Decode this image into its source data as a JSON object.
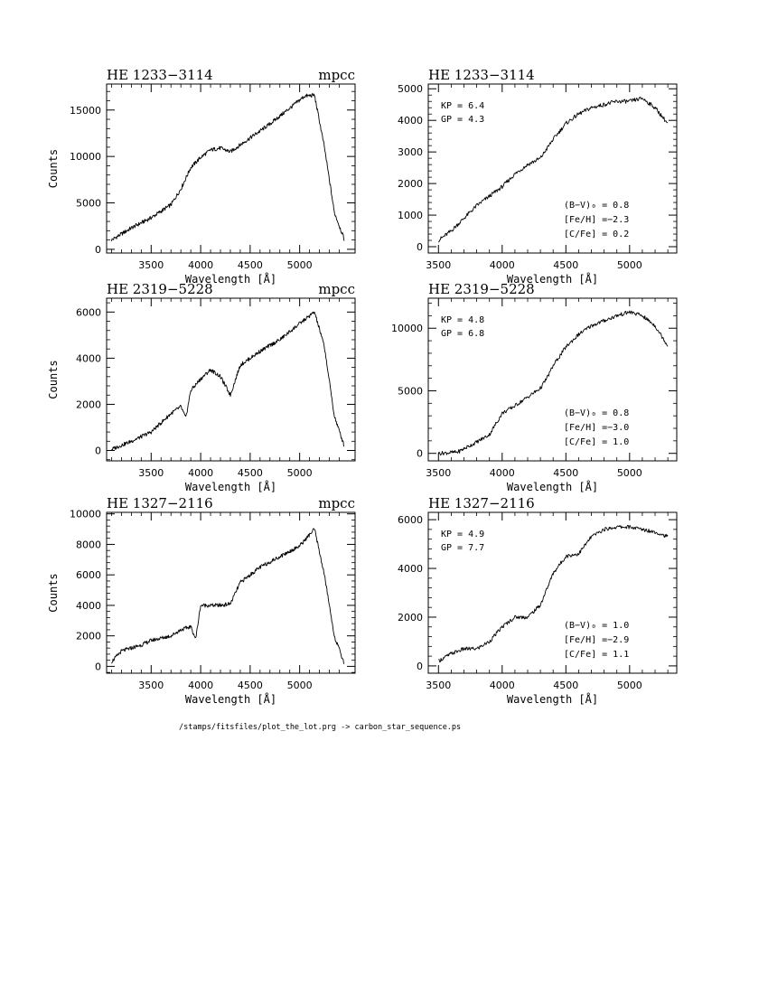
{
  "footer": "/stamps/fitsfiles/plot_the_lot.prg -> carbon_star_sequence.ps",
  "chart_data": [
    {
      "type": "line",
      "panel": "row1-left",
      "title": "HE 1233−3114",
      "title_right": "mpcc",
      "xlabel": "Wavelength [Å]",
      "ylabel": "Counts",
      "xlim": [
        3050,
        5560
      ],
      "ylim": [
        -400,
        17800
      ],
      "xticks": [
        3500,
        4000,
        4500,
        5000
      ],
      "yticks": [
        0,
        5000,
        10000,
        15000
      ],
      "grid": false,
      "points": [
        [
          3100,
          1000
        ],
        [
          3300,
          2300
        ],
        [
          3500,
          3400
        ],
        [
          3700,
          4800
        ],
        [
          3800,
          6500
        ],
        [
          3900,
          8800
        ],
        [
          4000,
          9900
        ],
        [
          4100,
          10700
        ],
        [
          4200,
          10900
        ],
        [
          4300,
          10500
        ],
        [
          4500,
          12000
        ],
        [
          4700,
          13500
        ],
        [
          4900,
          15200
        ],
        [
          5050,
          16500
        ],
        [
          5150,
          16600
        ],
        [
          5250,
          11000
        ],
        [
          5350,
          4000
        ],
        [
          5450,
          1100
        ]
      ],
      "annotations": []
    },
    {
      "type": "line",
      "panel": "row1-right",
      "title": "HE 1233−3114",
      "title_right": "",
      "xlabel": "Wavelength [Å]",
      "ylabel": "",
      "xlim": [
        3420,
        5370
      ],
      "ylim": [
        -200,
        5150
      ],
      "xticks": [
        3500,
        4000,
        4500,
        5000
      ],
      "yticks": [
        0,
        1000,
        2000,
        3000,
        4000,
        5000
      ],
      "grid": false,
      "points": [
        [
          3500,
          200
        ],
        [
          3600,
          500
        ],
        [
          3700,
          900
        ],
        [
          3800,
          1300
        ],
        [
          3900,
          1600
        ],
        [
          4000,
          1900
        ],
        [
          4100,
          2300
        ],
        [
          4200,
          2600
        ],
        [
          4300,
          2800
        ],
        [
          4400,
          3400
        ],
        [
          4500,
          3900
        ],
        [
          4600,
          4200
        ],
        [
          4700,
          4400
        ],
        [
          4800,
          4500
        ],
        [
          4900,
          4600
        ],
        [
          5000,
          4600
        ],
        [
          5100,
          4700
        ],
        [
          5200,
          4400
        ],
        [
          5300,
          3900
        ]
      ],
      "annotations": [
        "KP = 6.4",
        "GP = 4.3",
        "(B−V)₀ = 0.8",
        "[Fe/H] =−2.3",
        "[C/Fe] = 0.2"
      ]
    },
    {
      "type": "line",
      "panel": "row2-left",
      "title": "HE 2319−5228",
      "title_right": "mpcc",
      "xlabel": "Wavelength [Å]",
      "ylabel": "Counts",
      "xlim": [
        3050,
        5560
      ],
      "ylim": [
        -450,
        6600
      ],
      "xticks": [
        3500,
        4000,
        4500,
        5000
      ],
      "yticks": [
        0,
        2000,
        4000,
        6000
      ],
      "grid": false,
      "points": [
        [
          3100,
          50
        ],
        [
          3300,
          400
        ],
        [
          3500,
          800
        ],
        [
          3700,
          1600
        ],
        [
          3800,
          1900
        ],
        [
          3850,
          1400
        ],
        [
          3900,
          2600
        ],
        [
          4000,
          3100
        ],
        [
          4100,
          3500
        ],
        [
          4200,
          3200
        ],
        [
          4300,
          2400
        ],
        [
          4400,
          3700
        ],
        [
          4600,
          4300
        ],
        [
          4800,
          4800
        ],
        [
          5000,
          5500
        ],
        [
          5150,
          6000
        ],
        [
          5250,
          4500
        ],
        [
          5350,
          1500
        ],
        [
          5450,
          200
        ]
      ],
      "annotations": []
    },
    {
      "type": "line",
      "panel": "row2-right",
      "title": "HE 2319−5228",
      "title_right": "",
      "xlabel": "Wavelength [Å]",
      "ylabel": "",
      "xlim": [
        3420,
        5370
      ],
      "ylim": [
        -600,
        12400
      ],
      "xticks": [
        3500,
        4000,
        4500,
        5000
      ],
      "yticks": [
        0,
        5000,
        10000
      ],
      "grid": false,
      "points": [
        [
          3500,
          0
        ],
        [
          3650,
          100
        ],
        [
          3800,
          900
        ],
        [
          3900,
          1500
        ],
        [
          4000,
          3200
        ],
        [
          4100,
          3800
        ],
        [
          4200,
          4500
        ],
        [
          4300,
          5200
        ],
        [
          4350,
          6000
        ],
        [
          4400,
          7000
        ],
        [
          4500,
          8500
        ],
        [
          4600,
          9500
        ],
        [
          4700,
          10200
        ],
        [
          4800,
          10600
        ],
        [
          4900,
          11000
        ],
        [
          5000,
          11300
        ],
        [
          5100,
          11000
        ],
        [
          5200,
          10200
        ],
        [
          5300,
          8600
        ]
      ],
      "annotations": [
        "KP = 4.8",
        "GP = 6.8",
        "(B−V)₀ = 0.8",
        "[Fe/H] =−3.0",
        "[C/Fe] = 1.0"
      ]
    },
    {
      "type": "line",
      "panel": "row3-left",
      "title": "HE 1327−2116",
      "title_right": "mpcc",
      "xlabel": "Wavelength [Å]",
      "ylabel": "Counts",
      "xlim": [
        3050,
        5560
      ],
      "ylim": [
        -450,
        10100
      ],
      "xticks": [
        3500,
        4000,
        4500,
        5000
      ],
      "yticks": [
        0,
        2000,
        4000,
        6000,
        8000,
        10000
      ],
      "grid": false,
      "points": [
        [
          3100,
          300
        ],
        [
          3200,
          1000
        ],
        [
          3400,
          1400
        ],
        [
          3500,
          1700
        ],
        [
          3700,
          2000
        ],
        [
          3800,
          2400
        ],
        [
          3900,
          2600
        ],
        [
          3950,
          1800
        ],
        [
          4000,
          4000
        ],
        [
          4200,
          4000
        ],
        [
          4300,
          4100
        ],
        [
          4400,
          5500
        ],
        [
          4600,
          6500
        ],
        [
          4800,
          7200
        ],
        [
          5000,
          7900
        ],
        [
          5150,
          9000
        ],
        [
          5250,
          6000
        ],
        [
          5350,
          2000
        ],
        [
          5450,
          200
        ]
      ],
      "annotations": []
    },
    {
      "type": "line",
      "panel": "row3-right",
      "title": "HE 1327−2116",
      "title_right": "",
      "xlabel": "Wavelength [Å]",
      "ylabel": "",
      "xlim": [
        3420,
        5370
      ],
      "ylim": [
        -300,
        6300
      ],
      "xticks": [
        3500,
        4000,
        4500,
        5000
      ],
      "yticks": [
        0,
        2000,
        4000,
        6000
      ],
      "grid": false,
      "points": [
        [
          3500,
          200
        ],
        [
          3600,
          500
        ],
        [
          3700,
          700
        ],
        [
          3800,
          700
        ],
        [
          3900,
          1000
        ],
        [
          4000,
          1600
        ],
        [
          4100,
          2000
        ],
        [
          4200,
          2000
        ],
        [
          4300,
          2500
        ],
        [
          4400,
          3800
        ],
        [
          4500,
          4500
        ],
        [
          4600,
          4600
        ],
        [
          4700,
          5300
        ],
        [
          4800,
          5600
        ],
        [
          4900,
          5700
        ],
        [
          5000,
          5700
        ],
        [
          5100,
          5600
        ],
        [
          5200,
          5500
        ],
        [
          5300,
          5300
        ]
      ],
      "annotations": [
        "KP = 4.9",
        "GP = 7.7",
        "(B−V)₀ = 1.0",
        "[Fe/H] =−2.9",
        "[C/Fe] = 1.1"
      ]
    }
  ]
}
